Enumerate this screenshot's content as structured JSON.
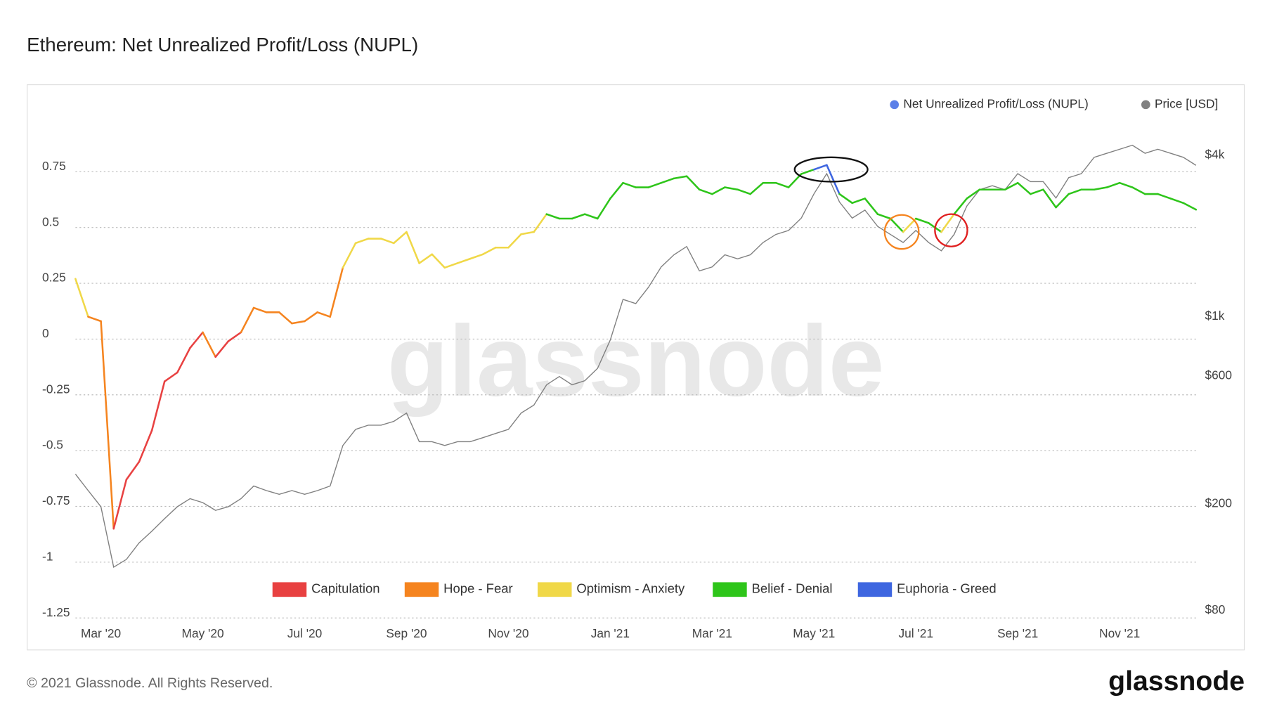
{
  "chart_data": {
    "type": "line",
    "title": "Ethereum: Net Unrealized Profit/Loss (NUPL)",
    "watermark": "glassnode",
    "footer": "© 2021 Glassnode. All Rights Reserved.",
    "logo": "glassnode",
    "categories": [
      null,
      null,
      "Mar '20",
      null,
      null,
      null,
      null,
      null,
      null,
      null,
      "May '20",
      null,
      null,
      null,
      null,
      null,
      null,
      null,
      "Jul '20",
      null,
      null,
      null,
      null,
      null,
      null,
      null,
      "Sep '20",
      null,
      null,
      null,
      null,
      null,
      null,
      null,
      "Nov '20",
      null,
      null,
      null,
      null,
      null,
      null,
      null,
      "Jan '21",
      null,
      null,
      null,
      null,
      null,
      null,
      null,
      "Mar '21",
      null,
      null,
      null,
      null,
      null,
      null,
      null,
      "May '21",
      null,
      null,
      null,
      null,
      null,
      null,
      null,
      "Jul '21",
      null,
      null,
      null,
      null,
      null,
      null,
      null,
      "Sep '21",
      null,
      null,
      null,
      null,
      null,
      null,
      null,
      "Nov '21",
      null,
      null,
      null,
      null,
      null,
      null
    ],
    "series": [
      {
        "name": "Net Unrealized Profit/Loss (NUPL)",
        "color": "#5b7fe8",
        "values": [
          0.27,
          0.1,
          0.08,
          -0.85,
          -0.63,
          -0.55,
          -0.41,
          -0.19,
          -0.15,
          -0.04,
          0.03,
          -0.08,
          -0.01,
          0.03,
          0.14,
          0.12,
          0.12,
          0.07,
          0.08,
          0.12,
          0.1,
          0.32,
          0.43,
          0.45,
          0.45,
          0.43,
          0.48,
          0.34,
          0.38,
          0.32,
          0.34,
          0.36,
          0.38,
          0.41,
          0.41,
          0.47,
          0.48,
          0.56,
          0.54,
          0.54,
          0.56,
          0.54,
          0.63,
          0.7,
          0.68,
          0.68,
          0.7,
          0.72,
          0.73,
          0.67,
          0.65,
          0.68,
          0.67,
          0.65,
          0.7,
          0.7,
          0.68,
          0.74,
          0.76,
          0.78,
          0.65,
          0.61,
          0.63,
          0.56,
          0.54,
          0.48,
          0.54,
          0.52,
          0.48,
          0.56,
          0.63,
          0.67,
          0.67,
          0.67,
          0.7,
          0.65,
          0.67,
          0.59,
          0.65,
          0.67,
          0.67,
          0.68,
          0.7,
          0.68,
          0.65,
          0.65,
          0.63,
          0.61,
          0.58
        ]
      },
      {
        "name": "Price [USD]",
        "color": "#808080",
        "axis": "y2",
        "values": [
          258,
          224,
          195,
          116,
          124,
          143,
          158,
          176,
          195,
          209,
          202,
          189,
          195,
          209,
          233,
          224,
          217,
          224,
          217,
          224,
          233,
          330,
          379,
          393,
          393,
          406,
          436,
          341,
          341,
          330,
          341,
          341,
          353,
          366,
          379,
          436,
          467,
          556,
          597,
          556,
          576,
          640,
          817,
          1158,
          1117,
          1285,
          1531,
          1699,
          1824,
          1479,
          1531,
          1699,
          1641,
          1699,
          1888,
          2023,
          2094,
          2328,
          2870,
          3412,
          2673,
          2328,
          2495,
          2168,
          2023,
          1888,
          2094,
          1888,
          1758,
          2023,
          2582,
          2972,
          3076,
          2972,
          3412,
          3184,
          3184,
          2767,
          3296,
          3412,
          3926,
          4064,
          4207,
          4355,
          4064,
          4207,
          4064,
          3926,
          3664
        ]
      }
    ],
    "zones": [
      {
        "name": "Capitulation",
        "color": "#e84141",
        "max": 0
      },
      {
        "name": "Hope - Fear",
        "color": "#f5841f",
        "max": 0.25
      },
      {
        "name": "Optimism - Anxiety",
        "color": "#f0d848",
        "max": 0.5
      },
      {
        "name": "Belief - Denial",
        "color": "#2ec51a",
        "max": 0.75
      },
      {
        "name": "Euphoria - Greed",
        "color": "#3e66e0",
        "max": null
      }
    ],
    "ylim": [
      -1.25,
      1.0
    ],
    "yticks": [
      0.75,
      0.5,
      0.25,
      0,
      -0.25,
      -0.5,
      -0.75,
      -1,
      -1.25
    ],
    "y2lim": [
      75,
      5600
    ],
    "y2scale": "log",
    "y2ticks": [
      {
        "value": 4000,
        "label": "$4k"
      },
      {
        "value": 1000,
        "label": "$1k"
      },
      {
        "value": 600,
        "label": "$600"
      },
      {
        "value": 200,
        "label": "$200"
      },
      {
        "value": 80,
        "label": "$80"
      }
    ],
    "grid": true
  }
}
